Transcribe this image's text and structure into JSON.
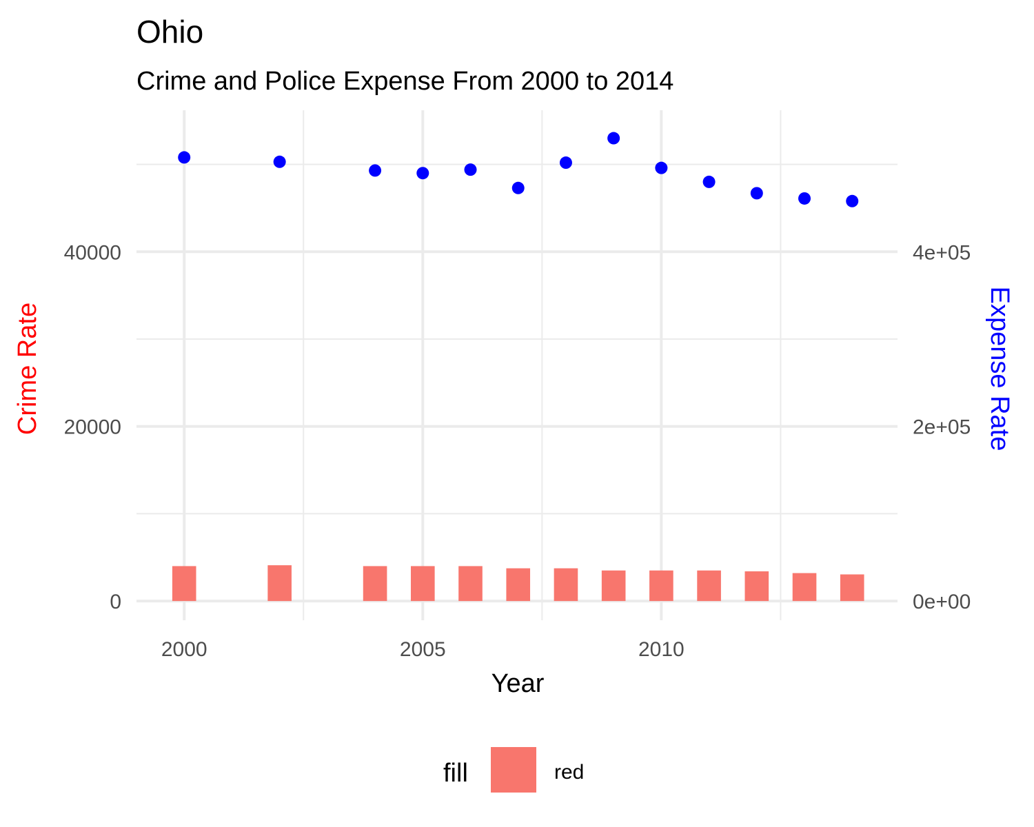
{
  "chart_data": {
    "type": "bar",
    "title": "Ohio",
    "subtitle": "Crime and Police Expense From 2000 to 2014",
    "xlabel": "Year",
    "ylabel_left": "Crime Rate",
    "ylabel_right": "Expense Rate",
    "xlim": [
      1999,
      2014.95
    ],
    "ylim_left": [
      -2200,
      56200
    ],
    "ylim_right": [
      -22000,
      562000
    ],
    "x_ticks": [
      2000,
      2005,
      2010
    ],
    "x_tick_labels": [
      "2000",
      "2005",
      "2010"
    ],
    "y_left_ticks": [
      0,
      20000,
      40000
    ],
    "y_left_tick_labels": [
      "0",
      "20000",
      "40000"
    ],
    "y_right_ticks": [
      0,
      200000,
      400000
    ],
    "y_right_tick_labels": [
      "0e+00",
      "2e+05",
      "4e+05"
    ],
    "grid": true,
    "legend_position": "bottom",
    "legend": {
      "title": "fill",
      "items": [
        {
          "label": "red",
          "color": "#F8766D"
        }
      ]
    },
    "series": [
      {
        "kind": "bar",
        "axis": "left",
        "color": "#F8766D",
        "x": [
          2000,
          2002,
          2004,
          2005,
          2006,
          2007,
          2008,
          2009,
          2010,
          2011,
          2012,
          2013,
          2014
        ],
        "values": [
          4000,
          4100,
          4000,
          4000,
          4000,
          3750,
          3750,
          3500,
          3500,
          3500,
          3400,
          3200,
          3050
        ]
      },
      {
        "kind": "point",
        "axis": "right",
        "color": "#0000FF",
        "x": [
          2000,
          2002,
          2004,
          2005,
          2006,
          2007,
          2008,
          2009,
          2010,
          2011,
          2012,
          2013,
          2014
        ],
        "values": [
          508000,
          503000,
          493000,
          490000,
          494000,
          473000,
          502000,
          530000,
          496000,
          480000,
          467000,
          461000,
          458000
        ]
      }
    ]
  }
}
